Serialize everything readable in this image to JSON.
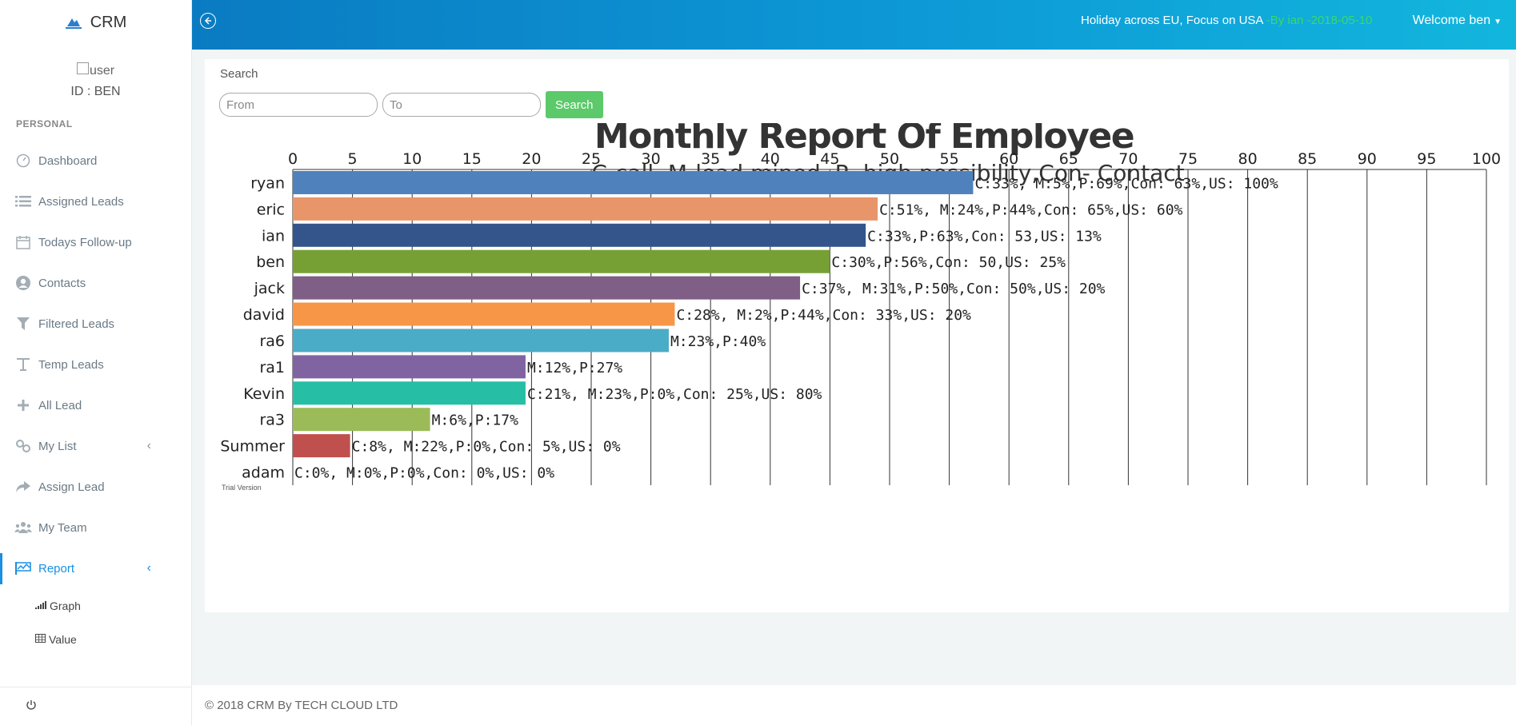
{
  "app": {
    "name": "CRM"
  },
  "user": {
    "avatar_alt": "user",
    "id_label": "ID : BEN"
  },
  "sidebar": {
    "section_label": "PERSONAL",
    "items": [
      {
        "label": "Dashboard",
        "icon": "dashboard-icon"
      },
      {
        "label": "Assigned Leads",
        "icon": "list-icon"
      },
      {
        "label": "Todays Follow-up",
        "icon": "calendar-icon"
      },
      {
        "label": "Contacts",
        "icon": "user-circle-icon"
      },
      {
        "label": "Filtered Leads",
        "icon": "filter-icon"
      },
      {
        "label": "Temp Leads",
        "icon": "text-icon"
      },
      {
        "label": "All Lead",
        "icon": "plus-icon"
      },
      {
        "label": "My List",
        "icon": "link-icon",
        "chevron": "‹"
      },
      {
        "label": "Assign Lead",
        "icon": "share-icon"
      },
      {
        "label": "My Team",
        "icon": "team-icon"
      },
      {
        "label": "Report",
        "icon": "flag-chart-icon",
        "chevron": "‹",
        "active": true
      }
    ],
    "subitems": [
      {
        "label": "Graph",
        "icon": "signal-icon"
      },
      {
        "label": "Value",
        "icon": "table-icon"
      }
    ],
    "footer_icon": "power-icon"
  },
  "topbar": {
    "notice_text": "Holiday across EU, Focus on USA",
    "notice_by": " -By ian -2018-05-10",
    "welcome": "Welcome ben"
  },
  "search": {
    "label": "Search",
    "from_placeholder": "From",
    "to_placeholder": "To",
    "button": "Search"
  },
  "chart_data": {
    "type": "bar",
    "orientation": "horizontal",
    "title": "Monthly Report Of Employee",
    "subtitle": "C-call ,M-lead mined ,P- high possibility,Con- Contact",
    "xlim": [
      0,
      100
    ],
    "xticks": [
      0,
      5,
      10,
      15,
      20,
      25,
      30,
      35,
      40,
      45,
      50,
      55,
      60,
      65,
      70,
      75,
      80,
      85,
      90,
      95,
      100
    ],
    "grid": true,
    "categories": [
      "ryan",
      "eric",
      "ian",
      "ben",
      "jack",
      "david",
      "ra6",
      "ra1",
      "Kevin",
      "ra3",
      "Summer",
      "adam"
    ],
    "values": [
      57,
      49,
      48,
      45,
      42.5,
      32,
      31.5,
      19.5,
      19.5,
      11.5,
      4.8,
      0
    ],
    "colors": [
      "#4f81bd",
      "#e8956a",
      "#34558b",
      "#76a034",
      "#7f5f85",
      "#f79646",
      "#4aacc6",
      "#8064a2",
      "#26bfa6",
      "#9bbb59",
      "#c0504d",
      "#888888"
    ],
    "data_labels": [
      "C:33%, M:5%,P:69%,Con: 63%,US: 100%",
      "C:51%, M:24%,P:44%,Con: 65%,US: 60%",
      "C:33%,P:63%,Con: 53,US: 13%",
      "C:30%,P:56%,Con: 50,US: 25%",
      "C:37%, M:31%,P:50%,Con: 50%,US: 20%",
      "C:28%, M:2%,P:44%,Con: 33%,US: 20%",
      "M:23%,P:40%",
      "M:12%,P:27%",
      "C:21%, M:23%,P:0%,Con: 25%,US: 80%",
      "M:6%,P:17%",
      "C:8%, M:22%,P:0%,Con: 5%,US: 0%",
      "C:0%, M:0%,P:0%,Con: 0%,US: 0%"
    ],
    "watermark": "Trial Version"
  },
  "footer": {
    "text": "© 2018 CRM By TECH CLOUD LTD"
  }
}
